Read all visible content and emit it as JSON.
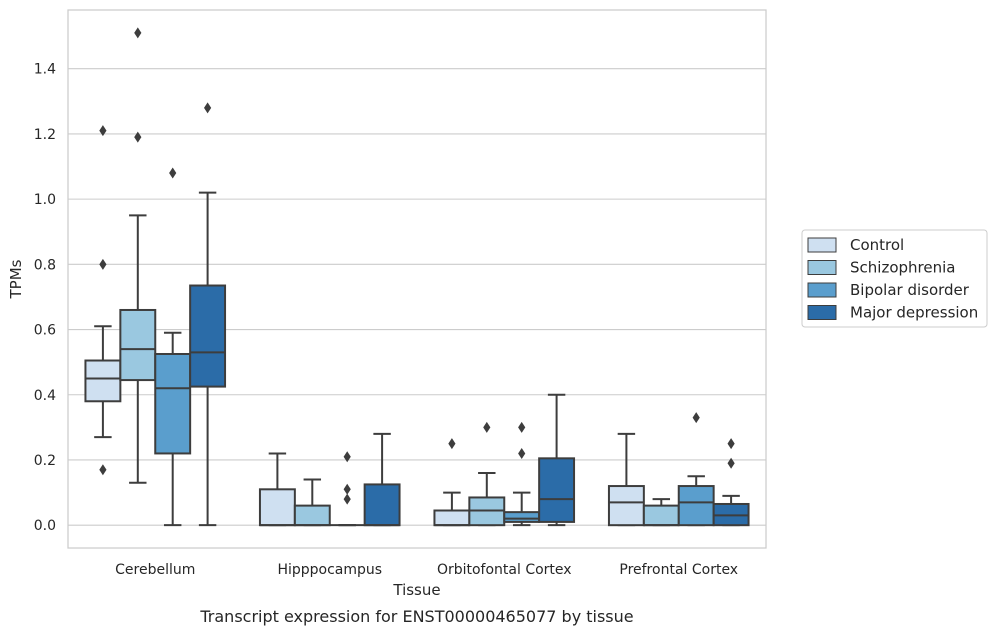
{
  "chart_data": {
    "type": "box",
    "title": "",
    "caption": "Transcript expression for ENST00000465077 by tissue",
    "xlabel": "Tissue",
    "ylabel": "TPMs",
    "ylim": [
      -0.07,
      1.58
    ],
    "yticks": [
      0.0,
      0.2,
      0.4,
      0.6,
      0.8,
      1.0,
      1.2,
      1.4
    ],
    "ytick_labels": [
      "0.0",
      "0.2",
      "0.4",
      "0.6",
      "0.8",
      "1.0",
      "1.2",
      "1.4"
    ],
    "grid": "horizontal",
    "legend_position": "right",
    "categories": [
      "Cerebellum",
      "Hipppocampus",
      "Orbitofontal Cortex",
      "Prefrontal Cortex"
    ],
    "colors": {
      "box_edge": "#3d3d3d",
      "grid": "#cccccc",
      "frame": "#cccccc"
    },
    "series": [
      {
        "name": "Control",
        "color": "#cfe0f1",
        "boxes": [
          {
            "whislo": 0.27,
            "q1": 0.38,
            "med": 0.45,
            "q3": 0.505,
            "whishi": 0.61,
            "fliers": [
              0.17,
              0.8,
              1.21
            ]
          },
          {
            "whislo": 0.0,
            "q1": 0.0,
            "med": 0.0,
            "q3": 0.11,
            "whishi": 0.22,
            "fliers": []
          },
          {
            "whislo": 0.0,
            "q1": 0.0,
            "med": 0.0,
            "q3": 0.045,
            "whishi": 0.1,
            "fliers": [
              0.25
            ]
          },
          {
            "whislo": 0.0,
            "q1": 0.0,
            "med": 0.07,
            "q3": 0.12,
            "whishi": 0.28,
            "fliers": []
          }
        ]
      },
      {
        "name": "Schizophrenia",
        "color": "#9ac8e0",
        "boxes": [
          {
            "whislo": 0.13,
            "q1": 0.445,
            "med": 0.54,
            "q3": 0.66,
            "whishi": 0.95,
            "fliers": [
              1.19,
              1.51
            ]
          },
          {
            "whislo": 0.0,
            "q1": 0.0,
            "med": 0.0,
            "q3": 0.06,
            "whishi": 0.14,
            "fliers": []
          },
          {
            "whislo": 0.0,
            "q1": 0.0,
            "med": 0.045,
            "q3": 0.085,
            "whishi": 0.16,
            "fliers": [
              0.3
            ]
          },
          {
            "whislo": 0.0,
            "q1": 0.0,
            "med": 0.0,
            "q3": 0.06,
            "whishi": 0.08,
            "fliers": []
          }
        ]
      },
      {
        "name": "Bipolar disorder",
        "color": "#5a9ecd",
        "boxes": [
          {
            "whislo": 0.0,
            "q1": 0.22,
            "med": 0.42,
            "q3": 0.525,
            "whishi": 0.59,
            "fliers": [
              1.08
            ]
          },
          {
            "whislo": 0.0,
            "q1": 0.0,
            "med": 0.0,
            "q3": 0.0,
            "whishi": 0.0,
            "fliers": [
              0.08,
              0.11,
              0.21
            ]
          },
          {
            "whislo": 0.0,
            "q1": 0.01,
            "med": 0.02,
            "q3": 0.04,
            "whishi": 0.1,
            "fliers": [
              0.22,
              0.3
            ]
          },
          {
            "whislo": 0.0,
            "q1": 0.0,
            "med": 0.07,
            "q3": 0.12,
            "whishi": 0.15,
            "fliers": [
              0.33
            ]
          }
        ]
      },
      {
        "name": "Major depression",
        "color": "#2b6ca8",
        "boxes": [
          {
            "whislo": 0.0,
            "q1": 0.425,
            "med": 0.53,
            "q3": 0.735,
            "whishi": 1.02,
            "fliers": [
              1.28
            ]
          },
          {
            "whislo": 0.0,
            "q1": 0.0,
            "med": 0.0,
            "q3": 0.125,
            "whishi": 0.28,
            "fliers": []
          },
          {
            "whislo": 0.0,
            "q1": 0.01,
            "med": 0.08,
            "q3": 0.205,
            "whishi": 0.4,
            "fliers": []
          },
          {
            "whislo": 0.0,
            "q1": 0.0,
            "med": 0.03,
            "q3": 0.065,
            "whishi": 0.09,
            "fliers": [
              0.19,
              0.25
            ]
          }
        ]
      }
    ]
  }
}
